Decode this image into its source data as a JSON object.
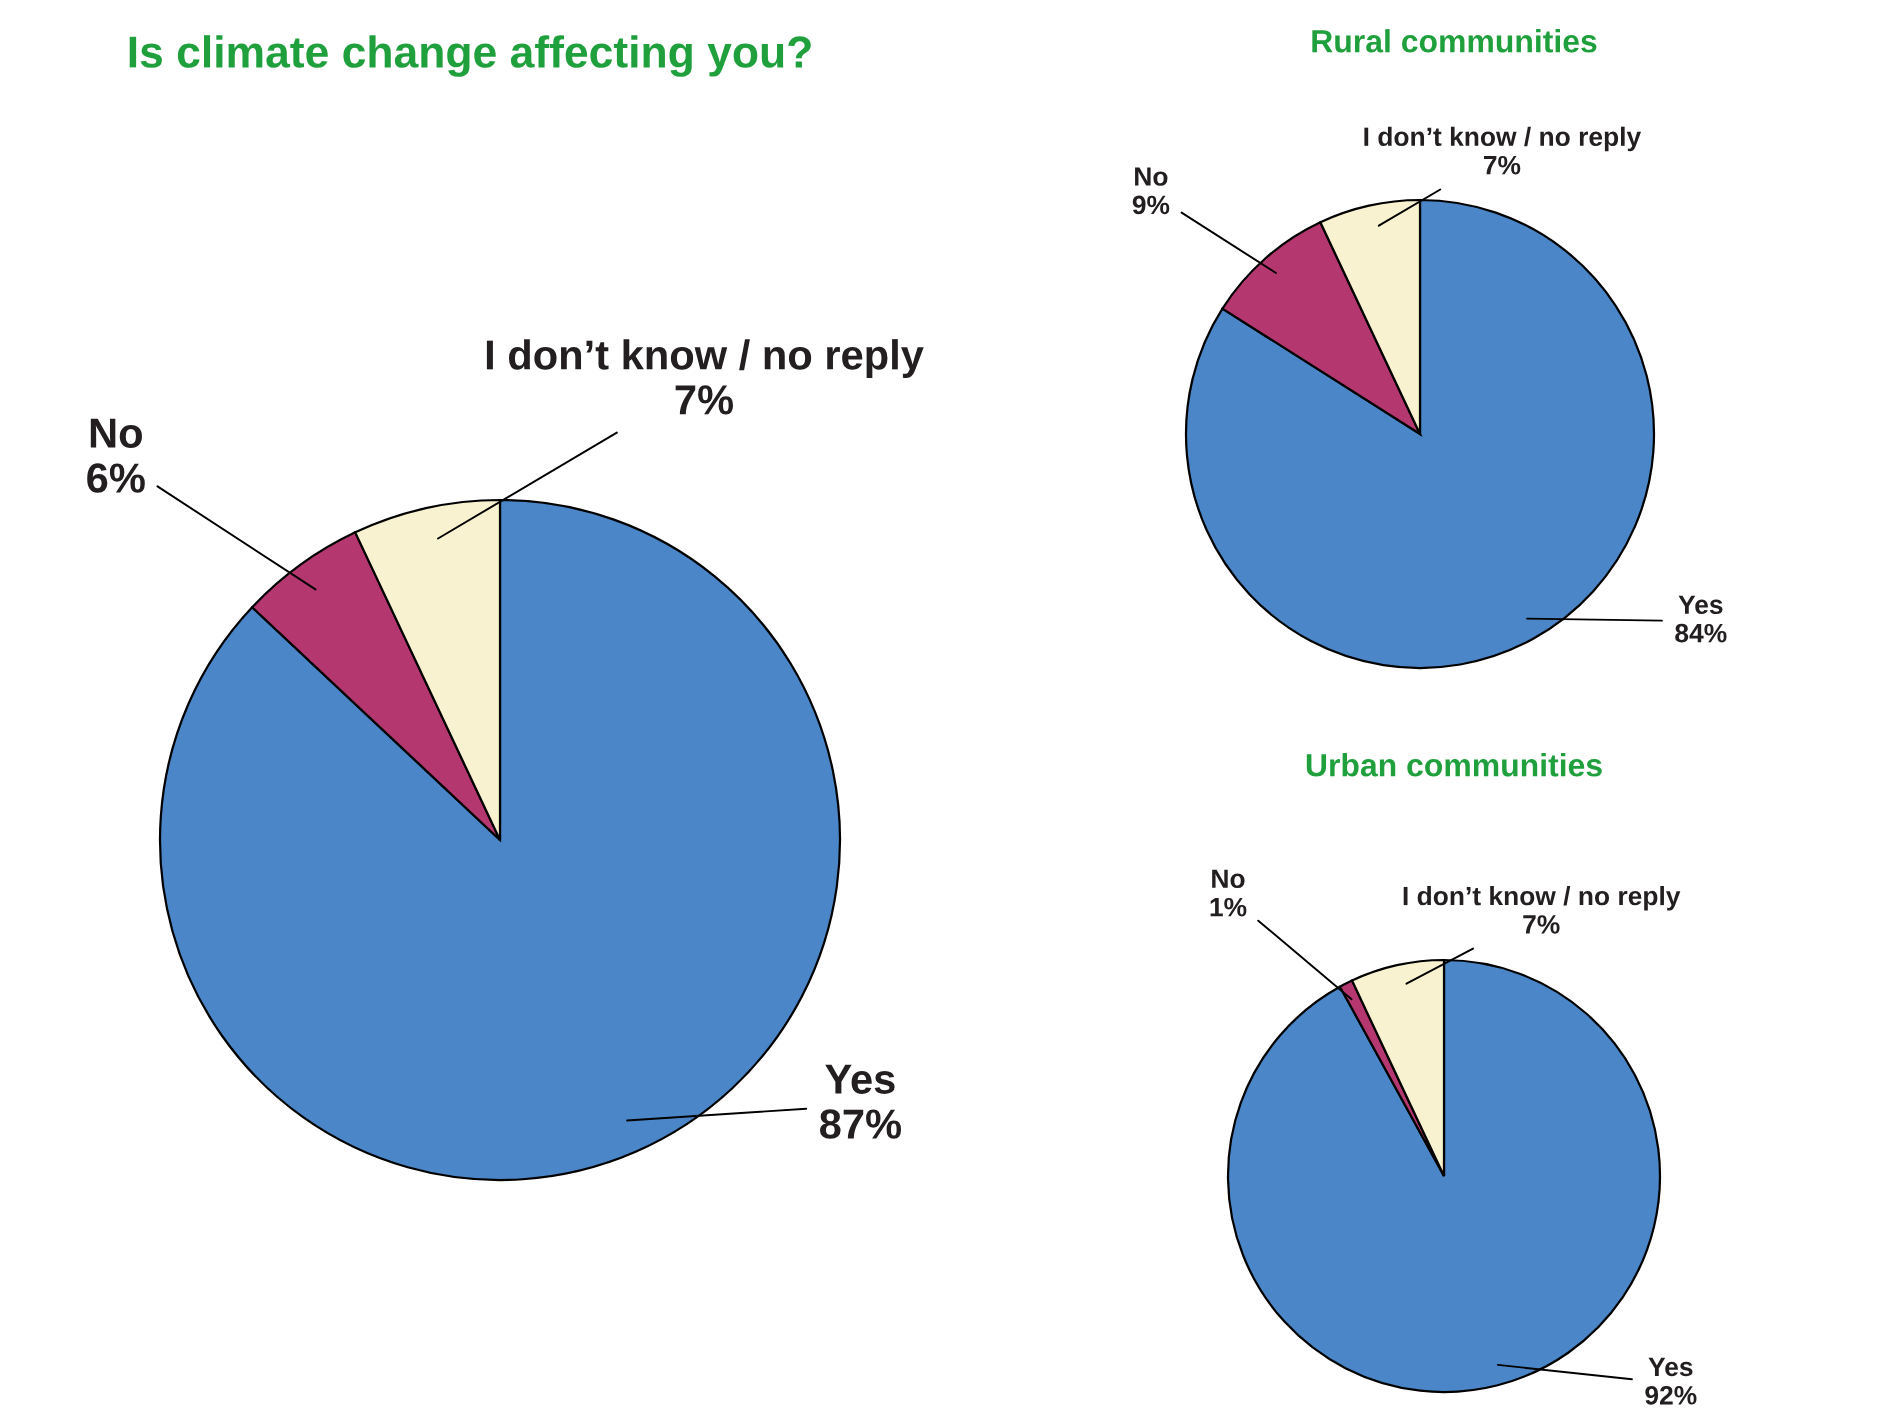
{
  "chart_data": [
    {
      "type": "pie",
      "title": "Is climate change affecting you?",
      "categories": [
        "Yes",
        "No",
        "I don’t know / no reply"
      ],
      "values": [
        87,
        6,
        7
      ],
      "value_labels": [
        "87%",
        "6%",
        "7%"
      ],
      "colors": [
        "#4a86c8",
        "#b5376f",
        "#f8f2d0"
      ],
      "legend": false
    },
    {
      "type": "pie",
      "title": "Rural communities",
      "categories": [
        "Yes",
        "No",
        "I don’t know / no reply"
      ],
      "values": [
        84,
        9,
        7
      ],
      "value_labels": [
        "84%",
        "9%",
        "7%"
      ],
      "colors": [
        "#4a86c8",
        "#b5376f",
        "#f8f2d0"
      ],
      "legend": false
    },
    {
      "type": "pie",
      "title": "Urban communities",
      "categories": [
        "Yes",
        "No",
        "I don’t know / no reply"
      ],
      "values": [
        92,
        1,
        7
      ],
      "value_labels": [
        "92%",
        "1%",
        "7%"
      ],
      "colors": [
        "#4a86c8",
        "#b5376f",
        "#f8f2d0"
      ],
      "legend": false
    }
  ]
}
